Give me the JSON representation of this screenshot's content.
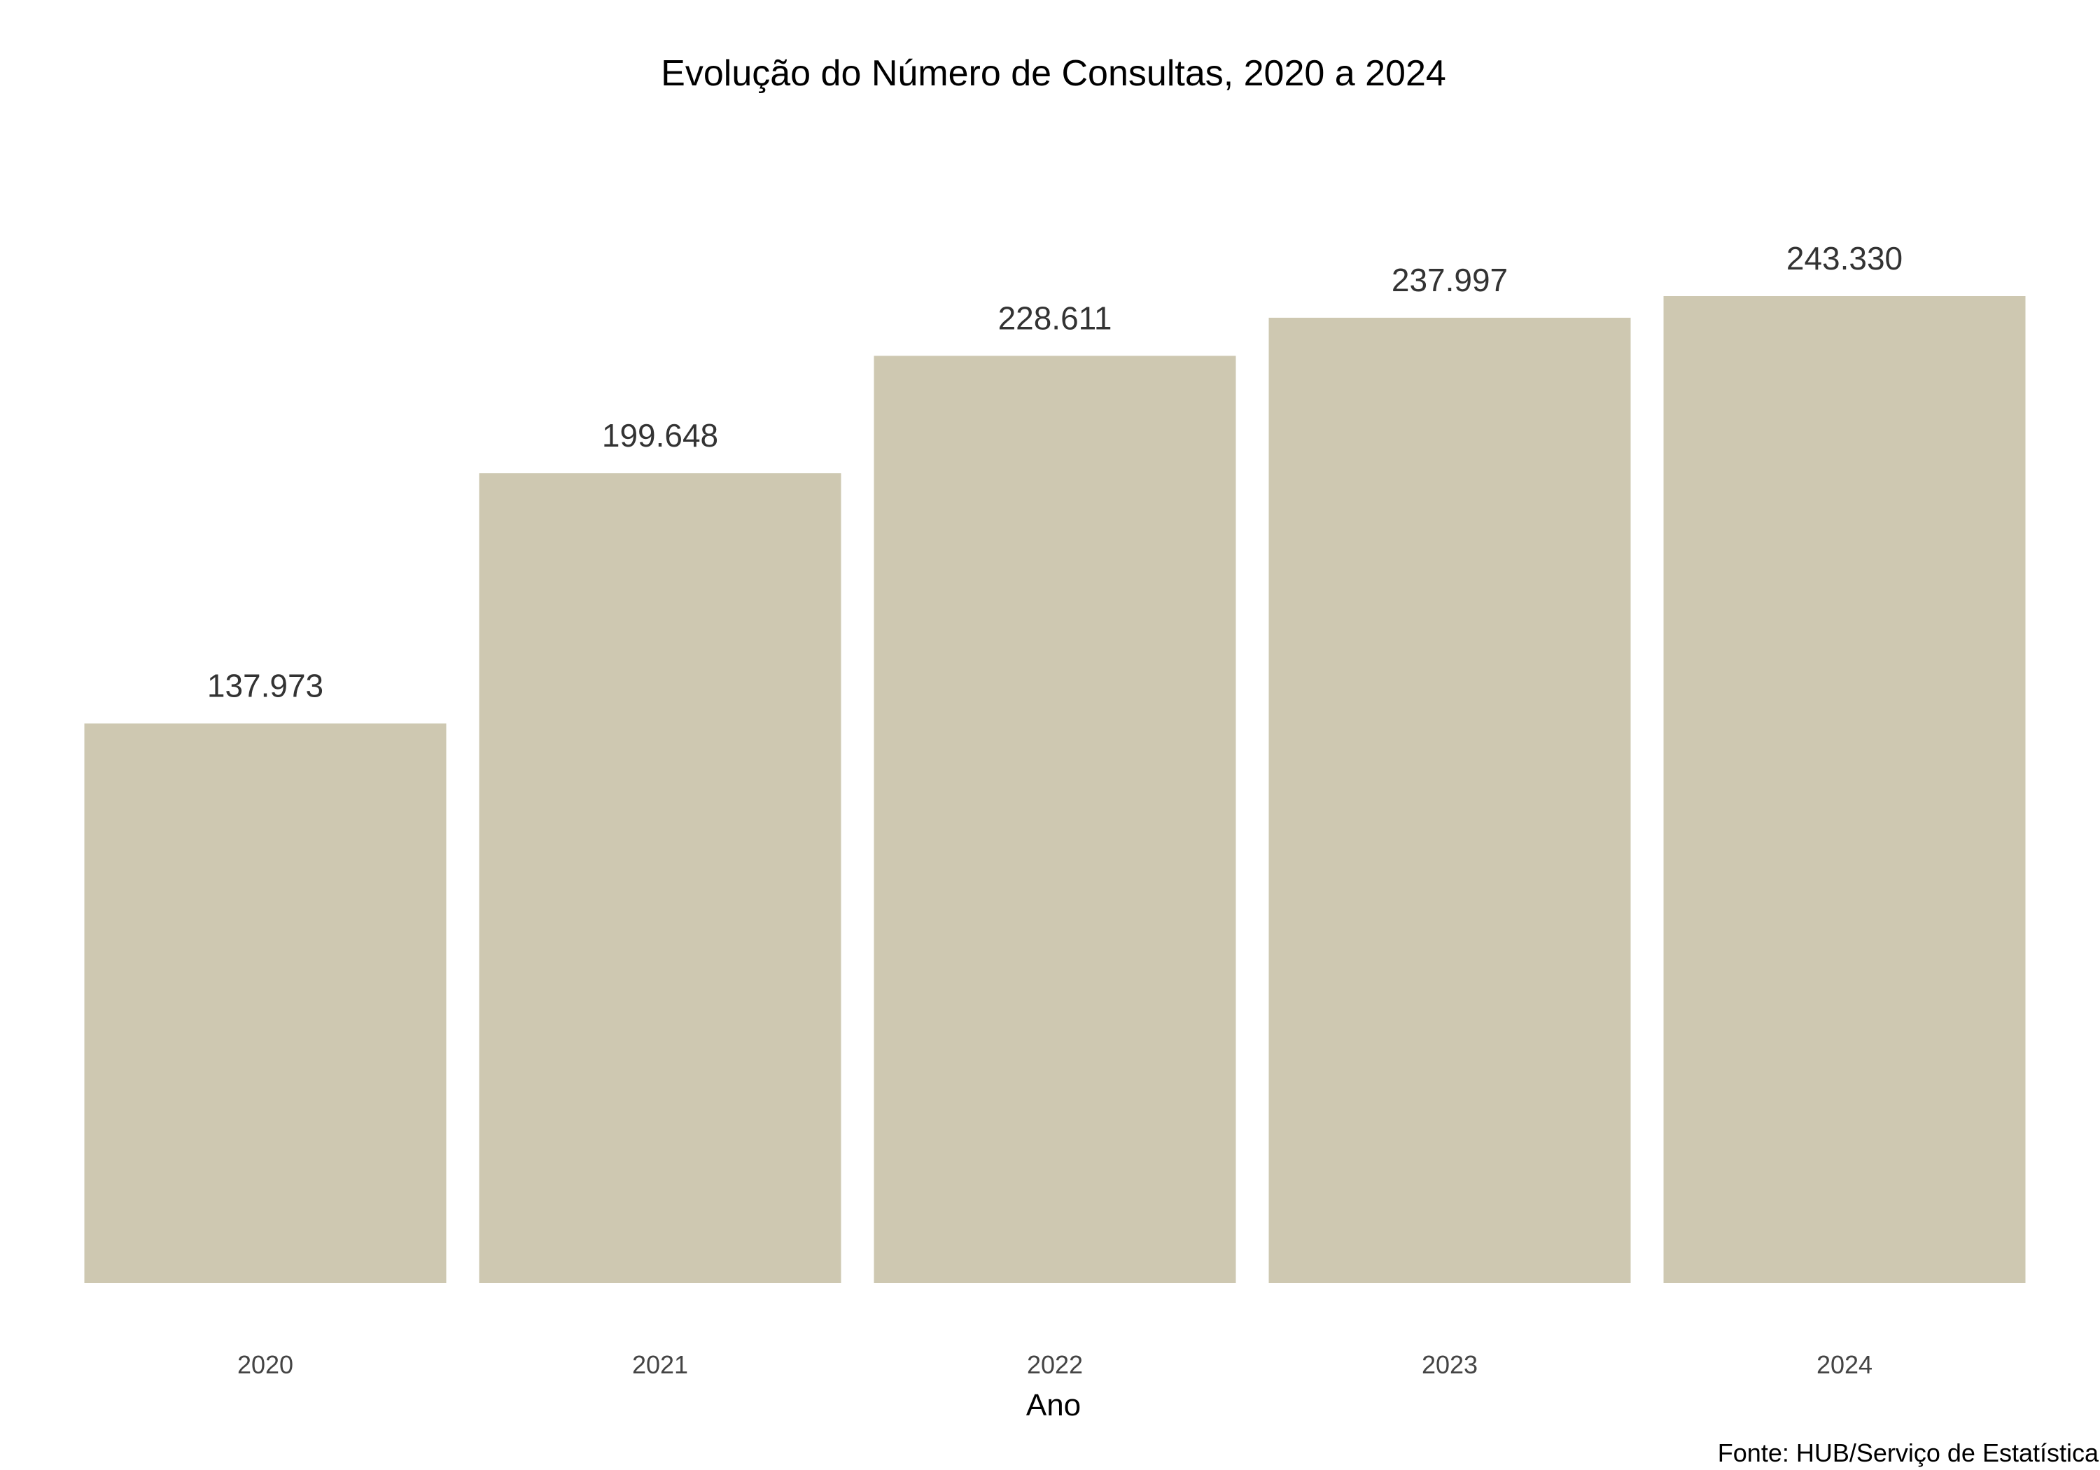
{
  "chart_data": {
    "type": "bar",
    "title": "Evolução do Número de Consultas, 2020 a 2024",
    "xlabel": "Ano",
    "ylabel": "",
    "categories": [
      "2020",
      "2021",
      "2022",
      "2023",
      "2024"
    ],
    "values": [
      137973,
      199648,
      228611,
      237997,
      243330
    ],
    "value_labels": [
      "137.973",
      "199.648",
      "228.611",
      "237.997",
      "243.330"
    ],
    "ylim": [
      0,
      255000
    ],
    "grid": false,
    "legend": "none",
    "bar_color": "#cec8b1",
    "caption": "Fonte: HUB/Serviço de Estatística"
  }
}
